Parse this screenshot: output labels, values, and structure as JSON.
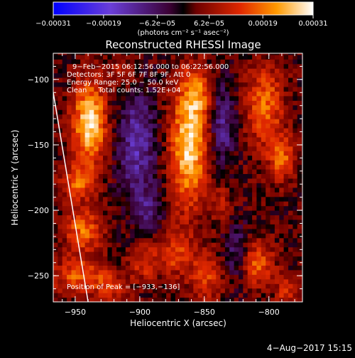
{
  "chart_data": {
    "type": "heatmap",
    "title": "Reconstructed RHESSI Image",
    "xlabel": "Heliocentric X (arcsec)",
    "ylabel": "Heliocentric Y (arcsec)",
    "xlim": [
      -967,
      -774
    ],
    "ylim": [
      -270,
      -80
    ],
    "x_ticks": [
      -950,
      -900,
      -850,
      -800
    ],
    "x_tick_labels": [
      "−950",
      "−900",
      "−850",
      "−800"
    ],
    "y_ticks": [
      -100,
      -150,
      -200,
      -250
    ],
    "y_tick_labels": [
      "−100",
      "−150",
      "−200",
      "−250"
    ],
    "colorbar": {
      "range": [
        -0.00031,
        0.00031
      ],
      "tick_values": [
        -0.00031,
        -0.00019,
        -6.2e-05,
        6.2e-05,
        0.00019,
        0.00031
      ],
      "tick_labels": [
        "−0.00031",
        "−0.00019",
        "−6.2e−05",
        "6.2e−05",
        "0.00019",
        "0.00031"
      ],
      "unit_label": "(photons cm⁻² s⁻¹ asec⁻²)"
    },
    "annotations": [
      "9−Feb−2015 06:12:56.000 to 06:22:56.000",
      "Detectors: 3F 5F 6F 7F 8F 9F, Att 0",
      "Energy Range: 25.0 − 50.0 keV",
      "Clean     Total counts: 1.52E+04"
    ],
    "peak_label": "Position of Peak = [−933,−136]",
    "peak_position": [
      -933,
      -136
    ],
    "limb_line": [
      [
        -967,
        -110
      ],
      [
        -940,
        -270
      ]
    ],
    "grid": false,
    "blobs": [
      {
        "x": -939,
        "y": -133,
        "sx": 9,
        "sy": 22,
        "a": 1.0
      },
      {
        "x": -948,
        "y": -178,
        "sx": 9,
        "sy": 9,
        "a": 0.55
      },
      {
        "x": -944,
        "y": -215,
        "sx": 10,
        "sy": 12,
        "a": 0.6
      },
      {
        "x": -946,
        "y": -250,
        "sx": 16,
        "sy": 9,
        "a": 0.55
      },
      {
        "x": -862,
        "y": -150,
        "sx": 10,
        "sy": 33,
        "a": 0.95
      },
      {
        "x": -855,
        "y": -110,
        "sx": 7,
        "sy": 12,
        "a": 0.5
      },
      {
        "x": -872,
        "y": -232,
        "sx": 9,
        "sy": 12,
        "a": 0.45
      },
      {
        "x": -848,
        "y": -250,
        "sx": 9,
        "sy": 14,
        "a": 0.45
      },
      {
        "x": -803,
        "y": -120,
        "sx": 10,
        "sy": 22,
        "a": 0.6
      },
      {
        "x": -790,
        "y": -160,
        "sx": 7,
        "sy": 12,
        "a": 0.55
      },
      {
        "x": -810,
        "y": -240,
        "sx": 10,
        "sy": 12,
        "a": 0.55
      },
      {
        "x": -786,
        "y": -262,
        "sx": 6,
        "sy": 8,
        "a": 0.4
      },
      {
        "x": -912,
        "y": -95,
        "sx": 8,
        "sy": 8,
        "a": 0.35
      },
      {
        "x": -896,
        "y": -240,
        "sx": 9,
        "sy": 10,
        "a": 0.4
      },
      {
        "x": -837,
        "y": -195,
        "sx": 6,
        "sy": 10,
        "a": 0.3
      },
      {
        "x": -922,
        "y": -260,
        "sx": 9,
        "sy": 7,
        "a": 0.35
      }
    ],
    "dark_patches": [
      {
        "x": -902,
        "y": -150,
        "sx": 10,
        "sy": 30,
        "a": 0.55
      },
      {
        "x": -836,
        "y": -135,
        "sx": 7,
        "sy": 22,
        "a": 0.45
      },
      {
        "x": -825,
        "y": -232,
        "sx": 7,
        "sy": 16,
        "a": 0.4
      },
      {
        "x": -893,
        "y": -200,
        "sx": 8,
        "sy": 10,
        "a": 0.35
      }
    ]
  },
  "footer": {
    "timestamp": "4−Aug−2017 15:15"
  }
}
